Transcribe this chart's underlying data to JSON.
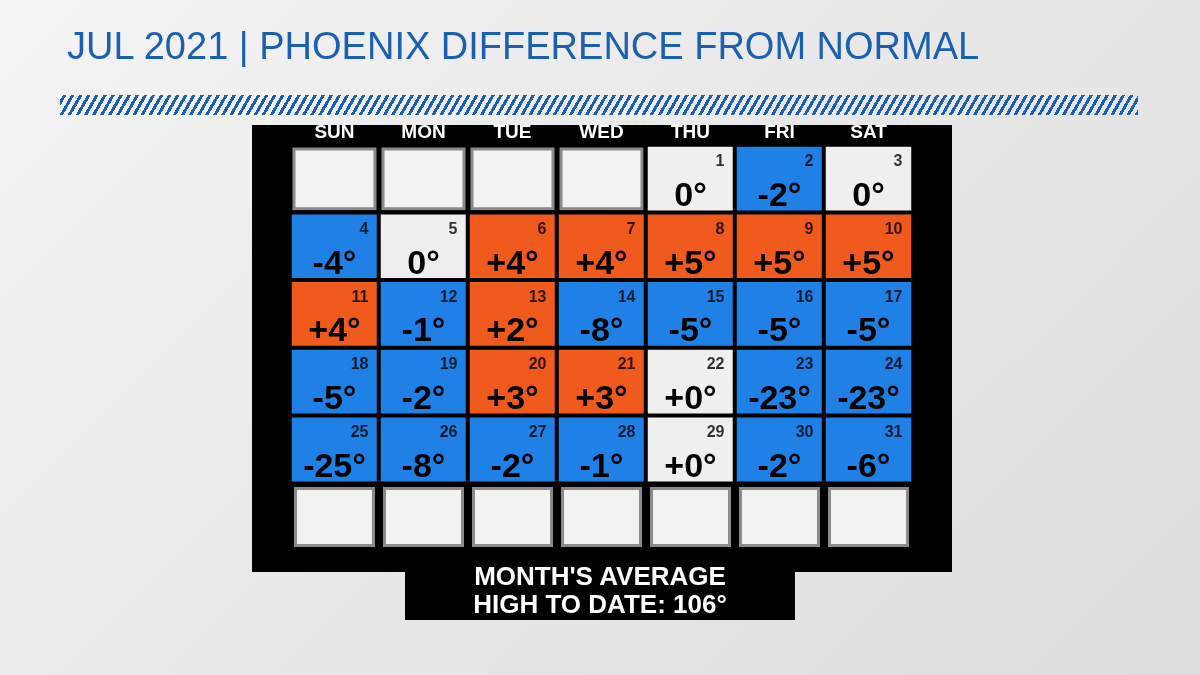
{
  "chart_data": {
    "type": "heatmap",
    "title": "JUL 2021 | PHOENIX DIFFERENCE FROM NORMAL",
    "categories": [
      "SUN",
      "MON",
      "TUE",
      "WED",
      "THU",
      "FRI",
      "SAT"
    ],
    "y_categories": [
      null,
      null,
      null,
      null,
      null
    ],
    "cells": [
      [
        null,
        null,
        null,
        null,
        0,
        -2,
        0
      ],
      [
        -4,
        0,
        4,
        4,
        5,
        5,
        5
      ],
      [
        4,
        -1,
        2,
        -8,
        -5,
        -5,
        -5
      ],
      [
        -5,
        -2,
        3,
        3,
        0,
        -23,
        -23
      ],
      [
        -25,
        -8,
        -2,
        -1,
        0,
        -2,
        -6
      ]
    ],
    "cell_labels": [
      [
        null,
        null,
        null,
        null,
        "0°",
        "-2°",
        "0°"
      ],
      [
        "-4°",
        "0°",
        "+4°",
        "+4°",
        "+5°",
        "+5°",
        "+5°"
      ],
      [
        "+4°",
        "-1°",
        "+2°",
        "-8°",
        "-5°",
        "-5°",
        "-5°"
      ],
      [
        "-5°",
        "-2°",
        "+3°",
        "+3°",
        "+0°",
        "-23°",
        "-23°"
      ],
      [
        "-25°",
        "-8°",
        "-2°",
        "-1°",
        "+0°",
        "-2°",
        "-6°"
      ]
    ],
    "colors": [
      "#1f80e6",
      "#efefef",
      "#f05a1c"
    ],
    "annotations": [
      "MONTH'S AVERAGE\nHIGH TO DATE: 106°",
      "1",
      "2",
      "3",
      "4",
      "5",
      "6",
      "7",
      "8",
      "9",
      "10",
      "11",
      "12",
      "13",
      "14",
      "15",
      "16",
      "17",
      "18",
      "19",
      "20",
      "21",
      "22",
      "23",
      "24",
      "25",
      "26",
      "27",
      "28",
      "29",
      "30",
      "31"
    ]
  }
}
